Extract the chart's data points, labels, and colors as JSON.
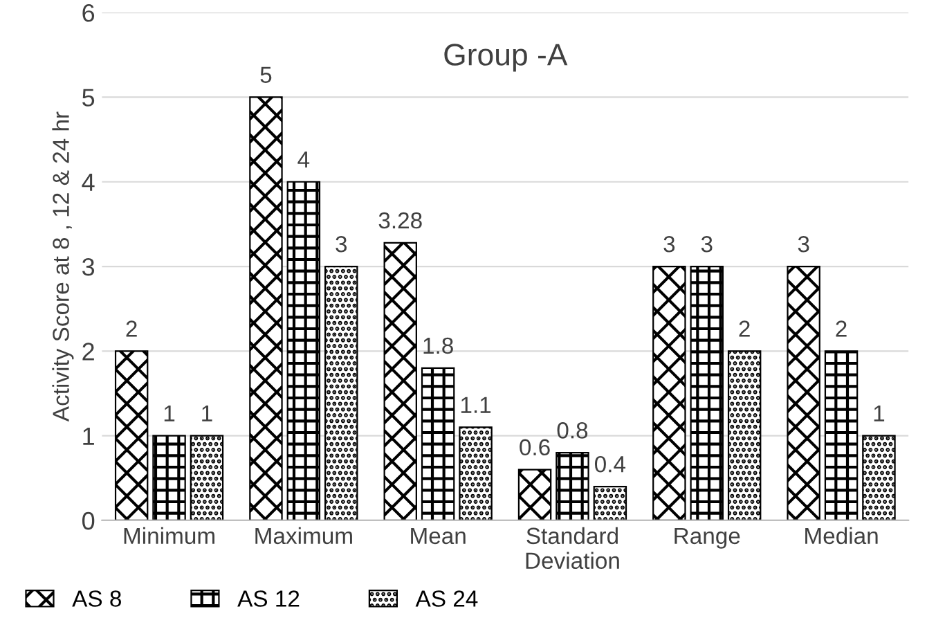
{
  "chart_data": {
    "type": "bar",
    "title": "Group -A",
    "ylabel": "Activity Score at 8 , 12 & 24 hr",
    "categories": [
      "Minimum",
      "Maximum",
      "Mean",
      "Standard\nDeviation",
      "Range",
      "Median"
    ],
    "series": [
      {
        "name": "AS 8",
        "color": "#000000",
        "values": [
          2,
          5,
          3.28,
          0.6,
          3,
          3
        ]
      },
      {
        "name": "AS 12",
        "color": "#000000",
        "values": [
          1,
          4,
          1.8,
          0.8,
          3,
          2
        ]
      },
      {
        "name": "AS 24",
        "color": "#000000",
        "values": [
          1,
          3,
          1.1,
          0.4,
          2,
          1
        ]
      }
    ],
    "ylim": [
      0,
      6
    ],
    "yticks": [
      0,
      1,
      2,
      3,
      4,
      5,
      6
    ],
    "grid": "y",
    "legend": "bottom left",
    "data_labels": true
  }
}
